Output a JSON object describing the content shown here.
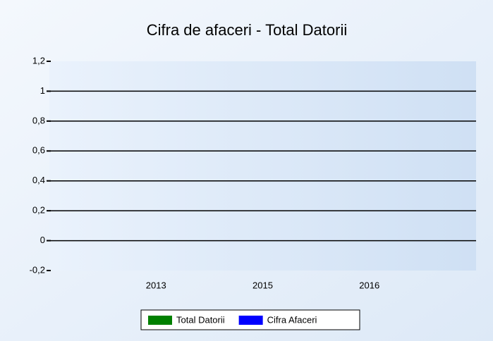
{
  "chart_data": {
    "type": "bar",
    "title": "Cifra de afaceri - Total  Datorii",
    "categories": [
      "2013",
      "2015",
      "2016"
    ],
    "series": [
      {
        "name": "Total Datorii",
        "color": "#008000",
        "values": [
          0,
          0,
          0
        ]
      },
      {
        "name": "Cifra Afaceri",
        "color": "#0000ff",
        "values": [
          0,
          0,
          0
        ]
      }
    ],
    "ylim": [
      -0.2,
      1.2
    ],
    "yticks": [
      {
        "value": -0.2,
        "label": "-0,2"
      },
      0,
      {
        "value": 0.2,
        "label": "0,2"
      },
      {
        "value": 0.4,
        "label": "0,4"
      },
      {
        "value": 0.6,
        "label": "0,6"
      },
      {
        "value": 0.8,
        "label": "0,8"
      },
      1,
      {
        "value": 1.2,
        "label": "1,2"
      }
    ],
    "grid": true,
    "legend": "bottom"
  }
}
